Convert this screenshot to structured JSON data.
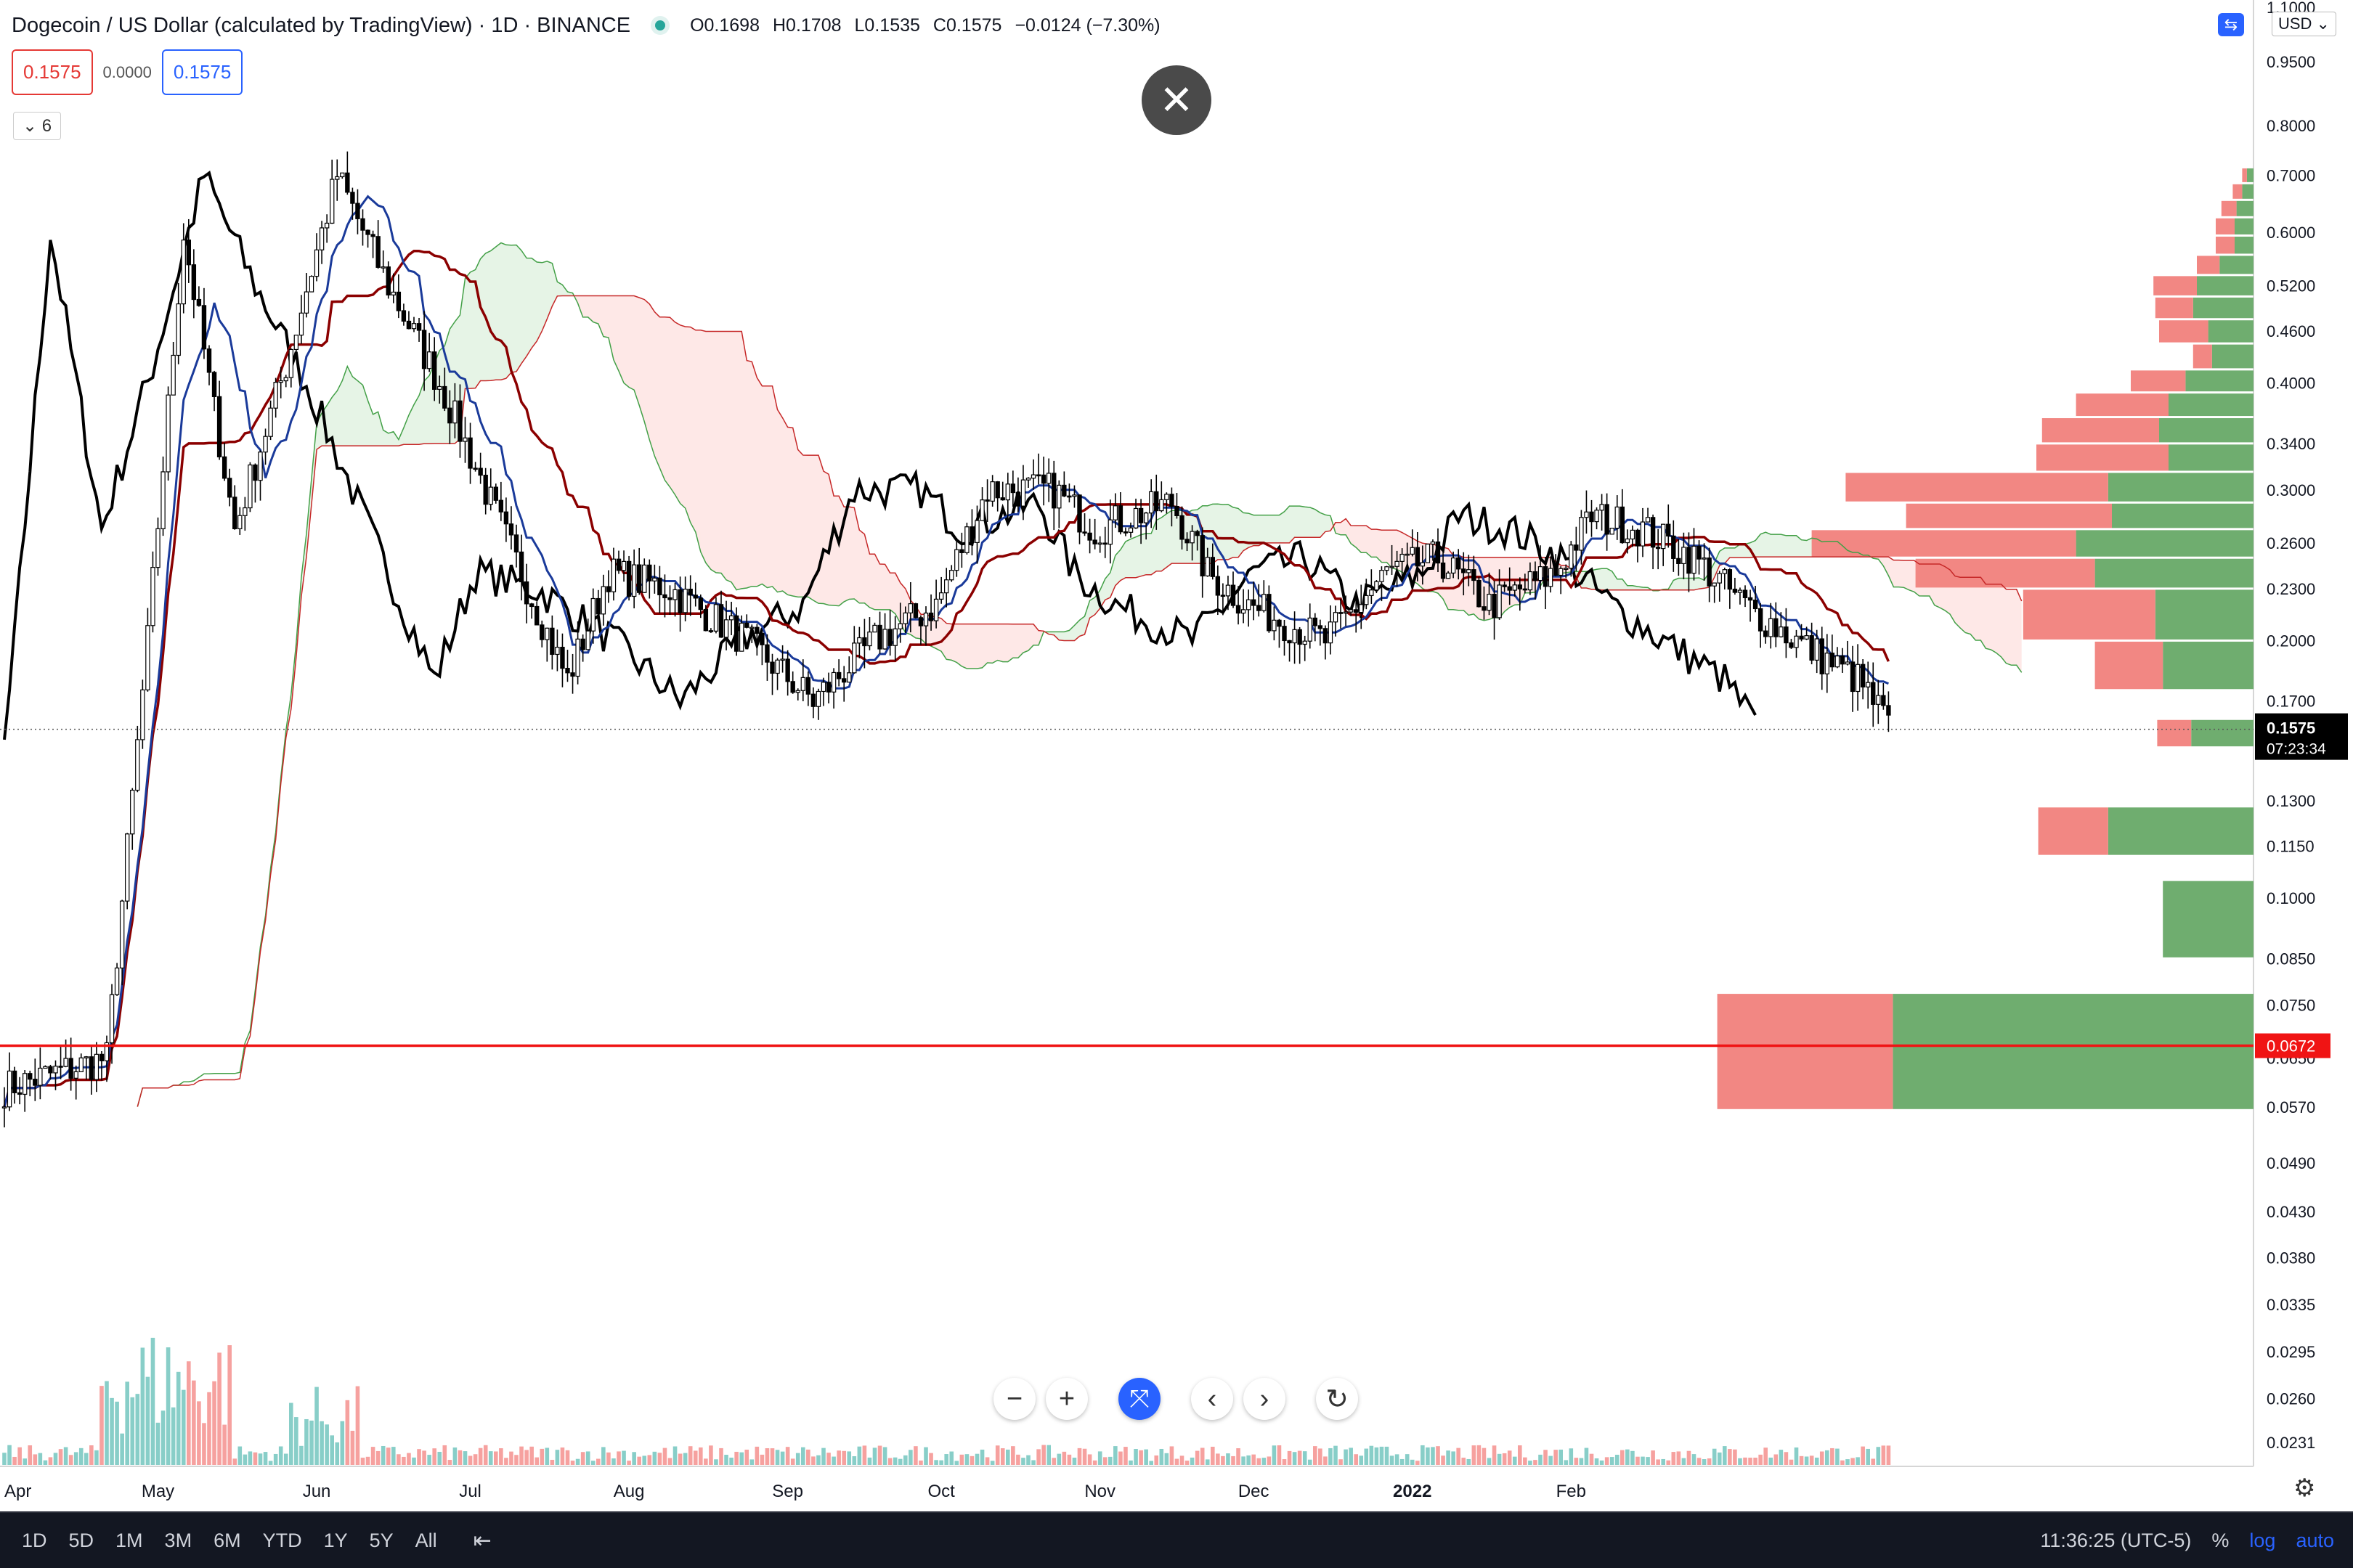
{
  "header": {
    "symbol": "Dogecoin / US Dollar (calculated by TradingView) · 1D · BINANCE",
    "open": "O0.1698",
    "high": "H0.1708",
    "low": "L0.1535",
    "close": "C0.1575",
    "change": "−0.0124 (−7.30%)"
  },
  "legend": {
    "box1": "0.1575",
    "mid": "0.0000",
    "box2": "0.1575",
    "collapse": "⌄ 6"
  },
  "currency": "USD ⌄",
  "controls": {
    "close_glyph": "✕",
    "zoom_out": "−",
    "zoom_in": "+",
    "reset": "⤧",
    "prev": "‹",
    "next": "›",
    "refresh": "↻"
  },
  "bottom_bar": {
    "ranges": [
      "1D",
      "5D",
      "1M",
      "3M",
      "6M",
      "YTD",
      "1Y",
      "5Y",
      "All"
    ],
    "time": "11:36:25 (UTC-5)",
    "percent": "%",
    "log": "log",
    "auto": "auto"
  },
  "chart_data": {
    "type": "candlestick",
    "price_scale": "log",
    "ylim": [
      0.022,
      1.1
    ],
    "x_labels": [
      "Apr",
      "May",
      "Jun",
      "Jul",
      "Aug",
      "Sep",
      "Oct",
      "Nov",
      "Dec",
      "2022",
      "Feb"
    ],
    "y_ticks": [
      "1.1000",
      "0.9500",
      "0.8000",
      "0.7000",
      "0.6000",
      "0.5200",
      "0.4600",
      "0.4000",
      "0.3400",
      "0.3000",
      "0.2600",
      "0.2300",
      "0.2000",
      "0.1700",
      "0.1300",
      "0.1150",
      "0.1000",
      "0.0850",
      "0.0750",
      "0.0650",
      "0.0570",
      "0.0490",
      "0.0430",
      "0.0380",
      "0.0335",
      "0.0295",
      "0.0260",
      "0.0231"
    ],
    "y_tick_values": [
      1.1,
      0.95,
      0.8,
      0.7,
      0.6,
      0.52,
      0.46,
      0.4,
      0.34,
      0.3,
      0.26,
      0.23,
      0.2,
      0.17,
      0.13,
      0.115,
      0.1,
      0.085,
      0.075,
      0.065,
      0.057,
      0.049,
      0.043,
      0.038,
      0.0335,
      0.0295,
      0.026,
      0.0231
    ],
    "last_price": {
      "label": "0.1575",
      "countdown": "07:23:34",
      "value": 0.1575
    },
    "horizontal_line": {
      "label": "0.0672",
      "value": 0.0672,
      "color": "#f01414"
    },
    "key_points": [
      [
        0,
        0.06
      ],
      [
        20,
        0.065
      ],
      [
        28,
        0.2
      ],
      [
        35,
        0.6
      ],
      [
        45,
        0.27
      ],
      [
        55,
        0.42
      ],
      [
        65,
        0.7
      ],
      [
        75,
        0.52
      ],
      [
        85,
        0.4
      ],
      [
        95,
        0.29
      ],
      [
        110,
        0.18
      ],
      [
        118,
        0.24
      ],
      [
        130,
        0.23
      ],
      [
        145,
        0.2
      ],
      [
        158,
        0.17
      ],
      [
        170,
        0.2
      ],
      [
        182,
        0.22
      ],
      [
        192,
        0.3
      ],
      [
        205,
        0.3
      ],
      [
        213,
        0.27
      ],
      [
        228,
        0.29
      ],
      [
        235,
        0.24
      ],
      [
        243,
        0.22
      ],
      [
        258,
        0.2
      ],
      [
        270,
        0.24
      ],
      [
        280,
        0.25
      ],
      [
        290,
        0.22
      ],
      [
        303,
        0.24
      ],
      [
        310,
        0.28
      ],
      [
        320,
        0.27
      ],
      [
        330,
        0.25
      ],
      [
        340,
        0.22
      ],
      [
        350,
        0.2
      ],
      [
        362,
        0.18
      ],
      [
        368,
        0.16
      ]
    ],
    "volume_profile": [
      {
        "lo": 0.685,
        "hi": 0.715,
        "down": 0.25,
        "up": 0.35
      },
      {
        "lo": 0.655,
        "hi": 0.685,
        "down": 0.5,
        "up": 0.6
      },
      {
        "lo": 0.625,
        "hi": 0.655,
        "down": 0.8,
        "up": 0.9
      },
      {
        "lo": 0.595,
        "hi": 0.625,
        "down": 1.0,
        "up": 1.0
      },
      {
        "lo": 0.565,
        "hi": 0.595,
        "down": 1.0,
        "up": 1.0
      },
      {
        "lo": 0.535,
        "hi": 0.565,
        "down": 1.2,
        "up": 1.8
      },
      {
        "lo": 0.505,
        "hi": 0.535,
        "down": 2.3,
        "up": 3.0
      },
      {
        "lo": 0.475,
        "hi": 0.505,
        "down": 2.0,
        "up": 3.2
      },
      {
        "lo": 0.445,
        "hi": 0.475,
        "down": 2.6,
        "up": 2.4
      },
      {
        "lo": 0.415,
        "hi": 0.445,
        "down": 1.0,
        "up": 2.2
      },
      {
        "lo": 0.39,
        "hi": 0.415,
        "down": 2.9,
        "up": 3.6
      },
      {
        "lo": 0.365,
        "hi": 0.39,
        "down": 4.9,
        "up": 4.5
      },
      {
        "lo": 0.34,
        "hi": 0.365,
        "down": 6.2,
        "up": 5.0
      },
      {
        "lo": 0.315,
        "hi": 0.34,
        "down": 7.0,
        "up": 4.5
      },
      {
        "lo": 0.29,
        "hi": 0.315,
        "down": 13.9,
        "up": 7.7
      },
      {
        "lo": 0.27,
        "hi": 0.29,
        "down": 10.9,
        "up": 7.5
      },
      {
        "lo": 0.25,
        "hi": 0.27,
        "down": 14.0,
        "up": 9.4
      },
      {
        "lo": 0.23,
        "hi": 0.25,
        "down": 9.5,
        "up": 8.4
      },
      {
        "lo": 0.2,
        "hi": 0.23,
        "down": 7.0,
        "up": 5.2
      },
      {
        "lo": 0.175,
        "hi": 0.2,
        "down": 3.6,
        "up": 4.8
      },
      {
        "lo": 0.15,
        "hi": 0.162,
        "down": 1.8,
        "up": 3.3
      },
      {
        "lo": 0.112,
        "hi": 0.128,
        "down": 3.7,
        "up": 7.7
      },
      {
        "lo": 0.085,
        "hi": 0.105,
        "down": 0,
        "up": 4.8
      },
      {
        "lo": 0.0565,
        "hi": 0.0775,
        "down": 9.3,
        "up": 19.1
      }
    ]
  }
}
